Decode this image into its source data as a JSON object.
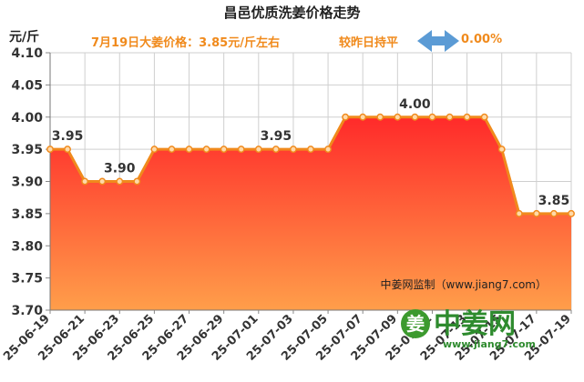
{
  "title": "昌邑优质洗姜价格走势",
  "unit": "元/斤",
  "subtitle_price": "7月19日大姜价格：3.85元/斤左右",
  "subtitle_compare": "较昨日持平",
  "subtitle_change": "0.00%",
  "source": "中姜网监制（www.jiang7.com）",
  "logo": {
    "mark": "姜",
    "name": "中姜网",
    "url": "www.jiang7.com"
  },
  "colors": {
    "line": "#f08a1c",
    "fill_top": "#ff2a2a",
    "fill_bottom": "#ff9e4a",
    "arrow": "#5b9bd5"
  },
  "chart_data": {
    "type": "area",
    "title": "昌邑优质洗姜价格走势",
    "ylabel": "元/斤",
    "ylim": [
      3.7,
      4.1
    ],
    "yticks": [
      "3.70",
      "3.75",
      "3.80",
      "3.85",
      "3.90",
      "3.95",
      "4.00",
      "4.05",
      "4.10"
    ],
    "xtick_labels": [
      "25-06-19",
      "25-06-21",
      "25-06-23",
      "25-06-25",
      "25-06-27",
      "25-06-29",
      "25-07-01",
      "25-07-03",
      "25-07-05",
      "25-07-07",
      "25-07-09",
      "25-07-11",
      "25-07-13",
      "25-07-15",
      "25-07-17",
      "25-07-19"
    ],
    "x": [
      "25-06-19",
      "25-06-20",
      "25-06-21",
      "25-06-22",
      "25-06-23",
      "25-06-24",
      "25-06-25",
      "25-06-26",
      "25-06-27",
      "25-06-28",
      "25-06-29",
      "25-06-30",
      "25-07-01",
      "25-07-02",
      "25-07-03",
      "25-07-04",
      "25-07-05",
      "25-07-06",
      "25-07-07",
      "25-07-08",
      "25-07-09",
      "25-07-10",
      "25-07-11",
      "25-07-12",
      "25-07-13",
      "25-07-14",
      "25-07-15",
      "25-07-16",
      "25-07-17",
      "25-07-18",
      "25-07-19"
    ],
    "values": [
      3.95,
      3.95,
      3.9,
      3.9,
      3.9,
      3.9,
      3.95,
      3.95,
      3.95,
      3.95,
      3.95,
      3.95,
      3.95,
      3.95,
      3.95,
      3.95,
      3.95,
      4.0,
      4.0,
      4.0,
      4.0,
      4.0,
      4.0,
      4.0,
      4.0,
      4.0,
      3.95,
      3.85,
      3.85,
      3.85,
      3.85
    ],
    "annotations": [
      {
        "index": 1,
        "text": "3.95"
      },
      {
        "index": 4,
        "text": "3.90"
      },
      {
        "index": 13,
        "text": "3.95"
      },
      {
        "index": 21,
        "text": "4.00"
      },
      {
        "index": 29,
        "text": "3.85"
      }
    ],
    "grid": true,
    "legend": "none"
  }
}
